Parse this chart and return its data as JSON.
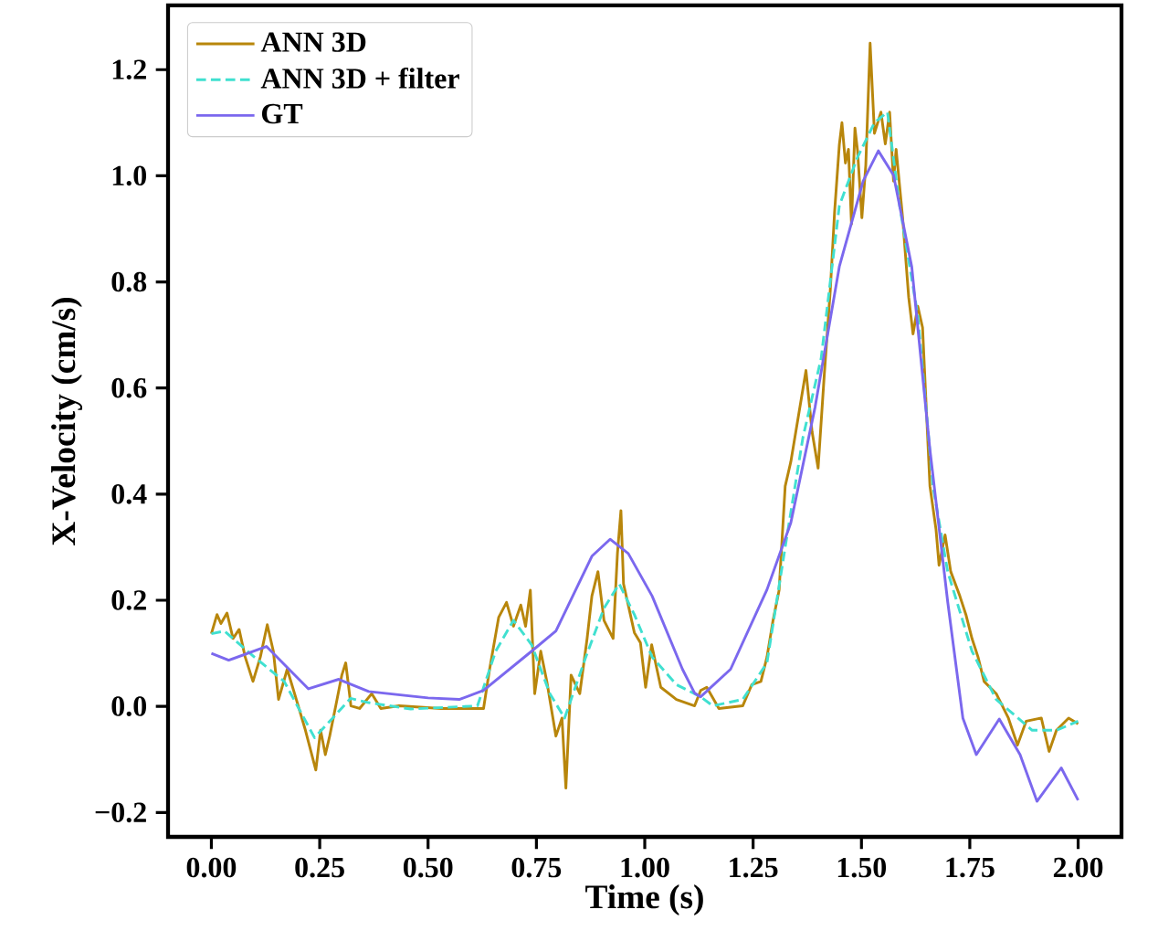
{
  "chart_data": {
    "type": "line",
    "xlabel": "Time (s)",
    "ylabel": "X-Velocity (cm/s)",
    "xlim": [
      -0.1,
      2.1
    ],
    "ylim": [
      -0.246,
      1.321
    ],
    "xticks": [
      {
        "value": 0,
        "label": "0.00"
      },
      {
        "value": 0.25,
        "label": "0.25"
      },
      {
        "value": 0.5,
        "label": "0.50"
      },
      {
        "value": 0.75,
        "label": "0.75"
      },
      {
        "value": 1.0,
        "label": "1.00"
      },
      {
        "value": 1.25,
        "label": "1.25"
      },
      {
        "value": 1.5,
        "label": "1.50"
      },
      {
        "value": 1.75,
        "label": "1.75"
      },
      {
        "value": 2.0,
        "label": "2.00"
      }
    ],
    "yticks": [
      {
        "value": -0.2,
        "label": "−0.2"
      },
      {
        "value": 0,
        "label": "0.0"
      },
      {
        "value": 0.2,
        "label": "0.2"
      },
      {
        "value": 0.4,
        "label": "0.4"
      },
      {
        "value": 0.6,
        "label": "0.6"
      },
      {
        "value": 0.8,
        "label": "0.8"
      },
      {
        "value": 1.0,
        "label": "1.0"
      },
      {
        "value": 1.2,
        "label": "1.2"
      }
    ],
    "legend": "top left",
    "grid": false,
    "marker": "none",
    "series": [
      {
        "name": "ANN 3D",
        "color": "#b8860b",
        "line_style": "solid",
        "x": [
          0,
          0.013,
          0.022,
          0.036,
          0.05,
          0.064,
          0.078,
          0.096,
          0.113,
          0.129,
          0.143,
          0.155,
          0.175,
          0.196,
          0.217,
          0.241,
          0.252,
          0.263,
          0.273,
          0.287,
          0.301,
          0.31,
          0.322,
          0.342,
          0.37,
          0.391,
          0.433,
          0.53,
          0.628,
          0.642,
          0.663,
          0.681,
          0.697,
          0.714,
          0.725,
          0.736,
          0.746,
          0.76,
          0.774,
          0.795,
          0.809,
          0.818,
          0.83,
          0.85,
          0.867,
          0.878,
          0.892,
          0.906,
          0.927,
          0.937,
          0.945,
          0.951,
          0.976,
          0.99,
          1.002,
          1.016,
          1.037,
          1.073,
          1.115,
          1.129,
          1.143,
          1.171,
          1.226,
          1.247,
          1.268,
          1.282,
          1.296,
          1.31,
          1.324,
          1.337,
          1.358,
          1.372,
          1.386,
          1.4,
          1.414,
          1.428,
          1.438,
          1.449,
          1.455,
          1.463,
          1.47,
          1.477,
          1.485,
          1.491,
          1.501,
          1.51,
          1.52,
          1.53,
          1.545,
          1.555,
          1.565,
          1.574,
          1.58,
          1.595,
          1.609,
          1.619,
          1.63,
          1.641,
          1.658,
          1.672,
          1.679,
          1.693,
          1.706,
          1.727,
          1.741,
          1.755,
          1.769,
          1.783,
          1.811,
          1.839,
          1.86,
          1.88,
          1.915,
          1.933,
          1.95,
          1.978,
          2.0
        ],
        "values": [
          0.137,
          0.173,
          0.156,
          0.176,
          0.128,
          0.145,
          0.093,
          0.047,
          0.093,
          0.154,
          0.104,
          0.013,
          0.07,
          0.013,
          -0.045,
          -0.12,
          -0.045,
          -0.091,
          -0.056,
          0.001,
          0.059,
          0.082,
          0.001,
          -0.004,
          0.024,
          -0.004,
          0.001,
          -0.004,
          -0.004,
          0.07,
          0.168,
          0.196,
          0.151,
          0.191,
          0.151,
          0.219,
          0.024,
          0.104,
          0.047,
          -0.056,
          -0.022,
          -0.154,
          0.059,
          0.024,
          0.128,
          0.208,
          0.254,
          0.162,
          0.128,
          0.289,
          0.369,
          0.231,
          0.139,
          0.12,
          0.036,
          0.116,
          0.036,
          0.013,
          0.001,
          0.03,
          0.036,
          -0.004,
          0.001,
          0.041,
          0.047,
          0.093,
          0.162,
          0.219,
          0.415,
          0.461,
          0.564,
          0.633,
          0.518,
          0.449,
          0.622,
          0.783,
          0.932,
          1.059,
          1.1,
          1.024,
          1.05,
          0.909,
          1.09,
          1.047,
          0.921,
          1.02,
          1.25,
          1.08,
          1.12,
          1.06,
          1.12,
          0.99,
          1.05,
          0.921,
          0.771,
          0.702,
          0.754,
          0.714,
          0.415,
          0.334,
          0.266,
          0.323,
          0.254,
          0.208,
          0.173,
          0.128,
          0.093,
          0.047,
          0.024,
          -0.022,
          -0.073,
          -0.028,
          -0.022,
          -0.085,
          -0.045,
          -0.022,
          -0.033
        ]
      },
      {
        "name": "ANN 3D + filter",
        "color": "#40e0d0",
        "line_style": "dashed",
        "x": [
          0,
          0.03,
          0.099,
          0.168,
          0.238,
          0.28,
          0.321,
          0.363,
          0.46,
          0.614,
          0.656,
          0.697,
          0.739,
          0.781,
          0.815,
          0.864,
          0.906,
          0.941,
          0.976,
          1.017,
          1.073,
          1.129,
          1.157,
          1.226,
          1.282,
          1.324,
          1.365,
          1.407,
          1.449,
          1.491,
          1.53,
          1.56,
          1.588,
          1.63,
          1.665,
          1.699,
          1.755,
          1.811,
          1.894,
          1.95,
          2.0
        ],
        "values": [
          0.137,
          0.142,
          0.093,
          0.047,
          -0.059,
          -0.022,
          0.015,
          0.007,
          -0.005,
          0.001,
          0.104,
          0.162,
          0.116,
          0.024,
          -0.022,
          0.093,
          0.185,
          0.231,
          0.173,
          0.093,
          0.041,
          0.018,
          0.001,
          0.013,
          0.082,
          0.3,
          0.507,
          0.656,
          0.944,
          1.035,
          1.1,
          1.12,
          0.944,
          0.737,
          0.415,
          0.254,
          0.104,
          0.013,
          -0.045,
          -0.045,
          -0.028
        ]
      },
      {
        "name": "GT",
        "color": "#7b68ee",
        "line_style": "solid",
        "x": [
          0,
          0.04,
          0.127,
          0.224,
          0.294,
          0.363,
          0.5,
          0.572,
          0.628,
          0.739,
          0.795,
          0.878,
          0.92,
          0.962,
          1.017,
          1.087,
          1.115,
          1.129,
          1.198,
          1.282,
          1.337,
          1.393,
          1.449,
          1.504,
          1.539,
          1.574,
          1.616,
          1.658,
          1.699,
          1.734,
          1.765,
          1.818,
          1.866,
          1.905,
          1.961,
          2.0
        ],
        "values": [
          0.1,
          0.087,
          0.113,
          0.033,
          0.051,
          0.028,
          0.016,
          0.013,
          0.03,
          0.104,
          0.142,
          0.283,
          0.315,
          0.288,
          0.208,
          0.07,
          0.025,
          0.018,
          0.07,
          0.22,
          0.346,
          0.564,
          0.829,
          0.99,
          1.047,
          1.001,
          0.829,
          0.484,
          0.197,
          -0.022,
          -0.091,
          -0.024,
          -0.091,
          -0.179,
          -0.116,
          -0.177
        ]
      }
    ]
  }
}
